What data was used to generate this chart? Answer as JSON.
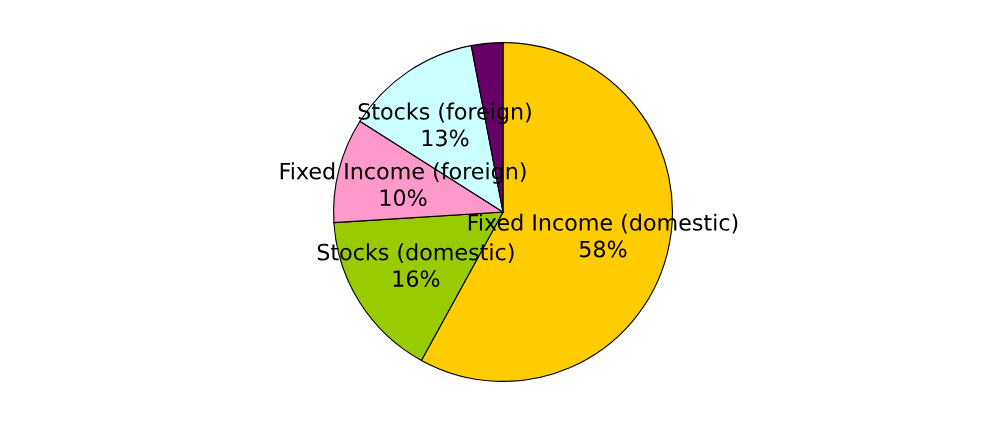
{
  "chart_data": {
    "type": "pie",
    "categories": [
      "Fixed Income (domestic)",
      "Stocks (domestic)",
      "Fixed Income (foreign)",
      "Stocks (foreign)",
      null
    ],
    "values": [
      58,
      16,
      10,
      13,
      3
    ],
    "value_labels": [
      "58%",
      "16%",
      "10%",
      "13%",
      null
    ],
    "colors": [
      "#ffcc00",
      "#99cc00",
      "#ff99cc",
      "#ccffff",
      "#660066"
    ],
    "legend": false
  }
}
